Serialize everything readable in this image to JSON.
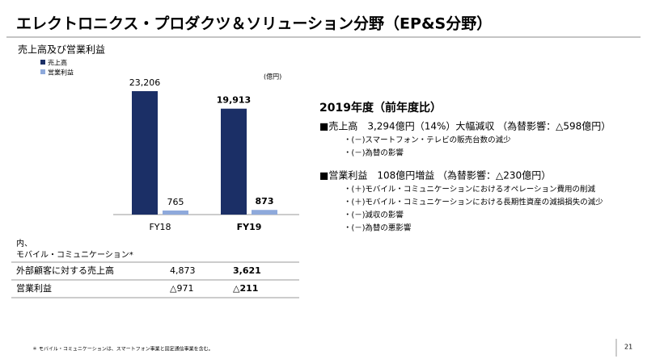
{
  "title": "エレクトロニクス・プロダクツ＆ソリューション分野（EP&S分野）",
  "chart_data": {
    "type": "bar",
    "title": "売上高及び営業利益",
    "unit": "(億円)",
    "categories": [
      "FY18",
      "FY19"
    ],
    "series": [
      {
        "name": "売上高",
        "color": "#1b2f66",
        "values": [
          23206,
          19913
        ],
        "value_labels": [
          "23,206",
          "19,913"
        ]
      },
      {
        "name": "営業利益",
        "color": "#8ea9db",
        "values": [
          765,
          873
        ],
        "value_labels": [
          "765",
          "873"
        ]
      }
    ]
  },
  "table": {
    "header": [
      "内、",
      "モバイル・コミュニケーション*"
    ],
    "rows": [
      [
        "外部顧客に対する売上高",
        "4,873",
        "3,621"
      ],
      [
        "営業利益",
        "△971",
        "△211"
      ]
    ]
  },
  "commentary": {
    "heading": "2019年度（前年度比）",
    "sections": [
      {
        "headline": "■売上高　3,294億円（14%）大幅減収 （為替影響：△598億円）",
        "bullets": [
          "・(－)スマートフォン・テレビの販売台数の減少",
          "・(－)為替の影響"
        ]
      },
      {
        "headline": "■営業利益　108億円増益 （為替影響：△230億円）",
        "bullets": [
          "・(＋)モバイル・コミュニケーションにおけるオペレーション費用の削減",
          "・(＋)モバイル・コミュニケーションにおける長期性資産の減損損失の減少",
          "・(－)減収の影響",
          "・(－)為替の悪影響"
        ]
      }
    ]
  },
  "footnote": "＊ モバイル・コミュニケーションは、スマートフォン事業と固定通信事業を含む。",
  "page_number": "21"
}
